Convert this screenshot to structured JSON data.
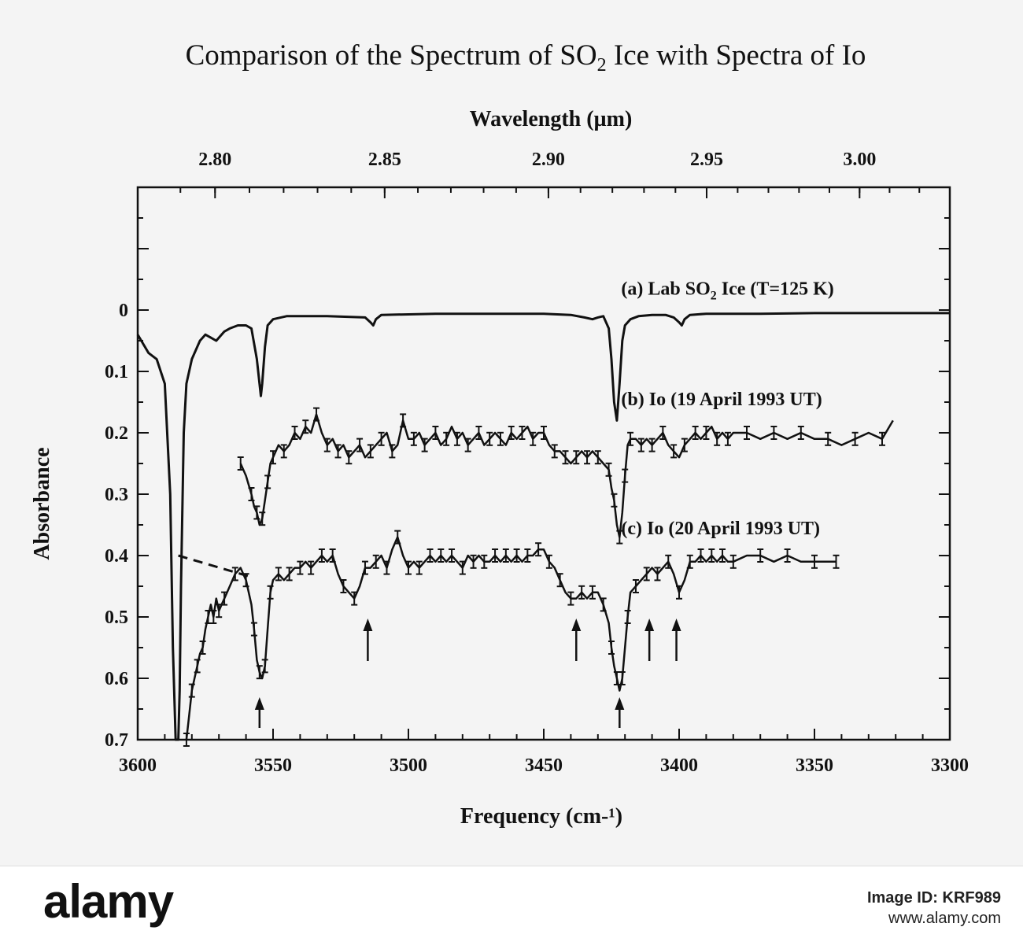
{
  "chart_data": {
    "type": "line",
    "title": "Comparison of the Spectrum of SO",
    "title_sub": "2",
    "title_rest": " Ice with Spectra of Io",
    "xlabel": "Frequency (cm-¹)",
    "x2label": "Wavelength (µm)",
    "ylabel": "Absorbance",
    "xlim": [
      3600,
      3300
    ],
    "ylim": [
      0,
      0.7
    ],
    "ylim_top_extended": -0.2,
    "grid": false,
    "x_ticks": [
      3600,
      3550,
      3500,
      3450,
      3400,
      3350,
      3300
    ],
    "y_ticks": [
      0,
      0.1,
      0.2,
      0.3,
      0.4,
      0.5,
      0.6,
      0.7
    ],
    "y_tick_labels": [
      "0",
      "0.1",
      "0.2",
      "0.3",
      "0.4",
      "0.5",
      "0.6",
      "0.7"
    ],
    "x2_ticks": [
      {
        "label": "2.80",
        "wavelength_um": 2.8
      },
      {
        "label": "2.85",
        "wavelength_um": 2.85
      },
      {
        "label": "2.90",
        "wavelength_um": 2.9
      },
      {
        "label": "2.95",
        "wavelength_um": 2.95
      },
      {
        "label": "3.00",
        "wavelength_um": 3.0
      }
    ],
    "series": [
      {
        "key": "lab",
        "label_pre": "(a) Lab SO",
        "label_sub": "2",
        "label_post": " Ice (T=125  K)",
        "label_at": [
          3415,
          -0.035
        ],
        "x": [
          3600,
          3596,
          3593,
          3590,
          3588,
          3587,
          3586,
          3585.5,
          3585,
          3584.5,
          3584,
          3583,
          3582,
          3580,
          3577,
          3575,
          3573,
          3571,
          3570,
          3568,
          3566,
          3563,
          3560,
          3558,
          3556,
          3555,
          3554.5,
          3554,
          3553,
          3552,
          3550,
          3545,
          3530,
          3516,
          3514,
          3513,
          3512,
          3510,
          3490,
          3470,
          3450,
          3440,
          3435,
          3432,
          3430,
          3428,
          3426,
          3425,
          3424,
          3423,
          3422,
          3421,
          3420,
          3418,
          3415,
          3410,
          3405,
          3402,
          3400,
          3399,
          3398,
          3396,
          3390,
          3370,
          3350,
          3330,
          3300
        ],
        "y": [
          0.04,
          0.07,
          0.08,
          0.12,
          0.3,
          0.55,
          0.7,
          0.7,
          0.7,
          0.62,
          0.45,
          0.2,
          0.12,
          0.08,
          0.05,
          0.04,
          0.045,
          0.05,
          0.045,
          0.035,
          0.03,
          0.025,
          0.025,
          0.03,
          0.08,
          0.12,
          0.14,
          0.12,
          0.06,
          0.025,
          0.015,
          0.01,
          0.01,
          0.012,
          0.02,
          0.025,
          0.015,
          0.008,
          0.006,
          0.006,
          0.006,
          0.008,
          0.012,
          0.015,
          0.012,
          0.01,
          0.03,
          0.08,
          0.15,
          0.18,
          0.12,
          0.05,
          0.025,
          0.015,
          0.01,
          0.008,
          0.008,
          0.012,
          0.02,
          0.025,
          0.015,
          0.008,
          0.006,
          0.006,
          0.005,
          0.005,
          0.005
        ]
      },
      {
        "key": "io19",
        "label": "(b) Io (19 April 1993 UT)",
        "label_at": [
          3415,
          0.145
        ],
        "x": [
          3562,
          3560,
          3558,
          3557,
          3556,
          3555,
          3554,
          3553,
          3552,
          3551,
          3550,
          3548,
          3546,
          3544,
          3542,
          3540,
          3538,
          3536,
          3534,
          3532,
          3530,
          3528,
          3526,
          3524,
          3522,
          3520,
          3518,
          3516,
          3514,
          3512,
          3510,
          3508,
          3506,
          3504,
          3502,
          3500,
          3498,
          3496,
          3494,
          3492,
          3490,
          3488,
          3486,
          3484,
          3482,
          3480,
          3478,
          3476,
          3474,
          3472,
          3470,
          3468,
          3466,
          3464,
          3462,
          3460,
          3458,
          3456,
          3454,
          3452,
          3450,
          3448,
          3446,
          3444,
          3442,
          3440,
          3438,
          3436,
          3434,
          3432,
          3430,
          3428,
          3426,
          3425,
          3424,
          3423,
          3422,
          3421,
          3420,
          3419,
          3418,
          3416,
          3414,
          3412,
          3410,
          3408,
          3406,
          3404,
          3402,
          3400,
          3398,
          3396,
          3394,
          3392,
          3390,
          3388,
          3386,
          3384,
          3382,
          3380,
          3375,
          3370,
          3365,
          3360,
          3355,
          3350,
          3345,
          3340,
          3335,
          3330,
          3325,
          3321
        ],
        "y": [
          0.25,
          0.27,
          0.3,
          0.32,
          0.33,
          0.35,
          0.34,
          0.31,
          0.28,
          0.25,
          0.24,
          0.22,
          0.23,
          0.22,
          0.2,
          0.21,
          0.19,
          0.2,
          0.17,
          0.2,
          0.22,
          0.21,
          0.23,
          0.22,
          0.24,
          0.23,
          0.22,
          0.24,
          0.23,
          0.22,
          0.21,
          0.2,
          0.23,
          0.22,
          0.18,
          0.21,
          0.21,
          0.2,
          0.22,
          0.21,
          0.2,
          0.22,
          0.21,
          0.19,
          0.21,
          0.2,
          0.22,
          0.21,
          0.2,
          0.22,
          0.21,
          0.2,
          0.21,
          0.22,
          0.2,
          0.21,
          0.2,
          0.19,
          0.21,
          0.2,
          0.2,
          0.22,
          0.23,
          0.23,
          0.24,
          0.25,
          0.24,
          0.23,
          0.24,
          0.23,
          0.24,
          0.25,
          0.26,
          0.29,
          0.31,
          0.35,
          0.37,
          0.33,
          0.27,
          0.22,
          0.21,
          0.21,
          0.22,
          0.21,
          0.22,
          0.21,
          0.2,
          0.22,
          0.23,
          0.24,
          0.22,
          0.21,
          0.2,
          0.21,
          0.2,
          0.19,
          0.21,
          0.2,
          0.21,
          0.2,
          0.2,
          0.21,
          0.2,
          0.21,
          0.2,
          0.21,
          0.21,
          0.22,
          0.21,
          0.2,
          0.21,
          0.18
        ]
      },
      {
        "key": "io20",
        "label": "(c) Io (20 April 1993 UT)",
        "label_at": [
          3415,
          0.355
        ],
        "x": [
          3582,
          3581,
          3580,
          3579,
          3578,
          3577,
          3576,
          3575,
          3574,
          3573,
          3572,
          3571,
          3570,
          3569,
          3568,
          3566,
          3564,
          3562,
          3560,
          3558,
          3557,
          3556,
          3555,
          3554,
          3553,
          3552,
          3551,
          3550,
          3548,
          3546,
          3544,
          3542,
          3540,
          3538,
          3536,
          3534,
          3532,
          3530,
          3528,
          3526,
          3524,
          3522,
          3520,
          3518,
          3516,
          3514,
          3512,
          3510,
          3508,
          3506,
          3504,
          3502,
          3500,
          3498,
          3496,
          3494,
          3492,
          3490,
          3488,
          3486,
          3484,
          3482,
          3480,
          3478,
          3476,
          3474,
          3472,
          3470,
          3468,
          3466,
          3464,
          3462,
          3460,
          3458,
          3456,
          3454,
          3452,
          3450,
          3448,
          3446,
          3444,
          3442,
          3440,
          3438,
          3436,
          3434,
          3432,
          3430,
          3428,
          3426,
          3425,
          3424,
          3423,
          3422,
          3421,
          3420,
          3419,
          3418,
          3416,
          3414,
          3412,
          3410,
          3408,
          3406,
          3404,
          3402,
          3400,
          3398,
          3396,
          3394,
          3392,
          3390,
          3388,
          3386,
          3384,
          3382,
          3380,
          3375,
          3370,
          3365,
          3360,
          3355,
          3350,
          3345,
          3342
        ],
        "y": [
          0.7,
          0.66,
          0.62,
          0.6,
          0.58,
          0.56,
          0.55,
          0.52,
          0.5,
          0.48,
          0.5,
          0.47,
          0.49,
          0.48,
          0.47,
          0.45,
          0.43,
          0.42,
          0.44,
          0.48,
          0.52,
          0.57,
          0.59,
          0.6,
          0.58,
          0.52,
          0.46,
          0.44,
          0.43,
          0.44,
          0.43,
          0.42,
          0.42,
          0.41,
          0.42,
          0.41,
          0.4,
          0.41,
          0.4,
          0.43,
          0.45,
          0.46,
          0.47,
          0.45,
          0.42,
          0.42,
          0.41,
          0.4,
          0.42,
          0.39,
          0.37,
          0.4,
          0.42,
          0.41,
          0.42,
          0.41,
          0.4,
          0.41,
          0.4,
          0.41,
          0.4,
          0.41,
          0.42,
          0.4,
          0.41,
          0.4,
          0.41,
          0.41,
          0.4,
          0.41,
          0.4,
          0.41,
          0.4,
          0.41,
          0.4,
          0.4,
          0.39,
          0.39,
          0.41,
          0.42,
          0.44,
          0.46,
          0.47,
          0.47,
          0.46,
          0.47,
          0.46,
          0.46,
          0.48,
          0.51,
          0.55,
          0.58,
          0.6,
          0.62,
          0.6,
          0.55,
          0.5,
          0.46,
          0.45,
          0.44,
          0.43,
          0.42,
          0.43,
          0.42,
          0.41,
          0.43,
          0.46,
          0.44,
          0.41,
          0.41,
          0.4,
          0.41,
          0.4,
          0.41,
          0.4,
          0.41,
          0.41,
          0.4,
          0.4,
          0.41,
          0.4,
          0.41,
          0.41,
          0.41,
          0.41
        ]
      }
    ],
    "annotations": {
      "arrows_x": [
        3555,
        3515,
        3438,
        3422,
        3411,
        3401
      ],
      "dashed_line": {
        "x": [
          3585,
          3558
        ],
        "y": [
          0.4,
          0.435
        ]
      }
    }
  },
  "footer": {
    "logo": "alamy",
    "image_id_label": "Image ID: KRF989",
    "site": "www.alamy.com"
  }
}
